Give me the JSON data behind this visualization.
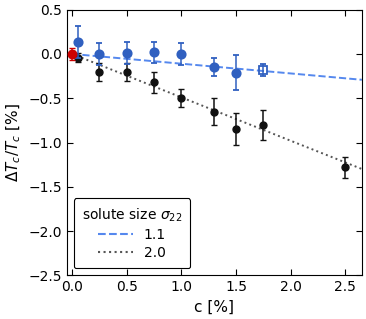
{
  "blue_x": [
    0.05,
    0.25,
    0.5,
    0.75,
    1.0,
    1.3,
    1.5,
    1.75
  ],
  "blue_y": [
    0.13,
    0.0,
    0.01,
    0.02,
    0.0,
    -0.15,
    -0.21,
    -0.18
  ],
  "blue_yerr": [
    0.18,
    0.12,
    0.12,
    0.12,
    0.12,
    0.1,
    0.2,
    0.07
  ],
  "blue_marker": [
    "o",
    "o",
    "o",
    "o",
    "o",
    "o",
    "o",
    "s"
  ],
  "black_x": [
    0.0,
    0.05,
    0.25,
    0.5,
    0.75,
    1.0,
    1.3,
    1.5,
    1.75,
    2.5
  ],
  "black_y": [
    0.0,
    -0.04,
    -0.2,
    -0.2,
    -0.32,
    -0.5,
    -0.65,
    -0.85,
    -0.8,
    -1.28
  ],
  "black_yerr": [
    0.03,
    0.05,
    0.1,
    0.1,
    0.12,
    0.1,
    0.15,
    0.18,
    0.17,
    0.12
  ],
  "black_marker": [
    "s",
    "o",
    "o",
    "o",
    "o",
    "o",
    "o",
    "o",
    "o",
    "o"
  ],
  "red_x": [
    0.0
  ],
  "red_y": [
    0.0
  ],
  "red_yerr": [
    0.07
  ],
  "slope_blue": -0.11,
  "slope_black": -0.49,
  "xlabel": "c [%]",
  "ylabel": "$\\Delta T_c/T_c$ [%]",
  "ylim": [
    -2.5,
    0.5
  ],
  "xlim": [
    -0.05,
    2.65
  ],
  "yticks": [
    0.5,
    0.0,
    -0.5,
    -1.0,
    -1.5,
    -2.0,
    -2.5
  ],
  "xticks": [
    0.0,
    0.5,
    1.0,
    1.5,
    2.0,
    2.5
  ],
  "legend_title": "solute size $\\sigma_{22}$",
  "legend_label_blue": "1.1",
  "legend_label_black": "2.0",
  "blue_color": "#3060c0",
  "black_color": "#111111",
  "red_color": "#cc0000",
  "fit_blue_color": "#5588ee",
  "fit_black_color": "#555555",
  "background_color": "#ffffff"
}
